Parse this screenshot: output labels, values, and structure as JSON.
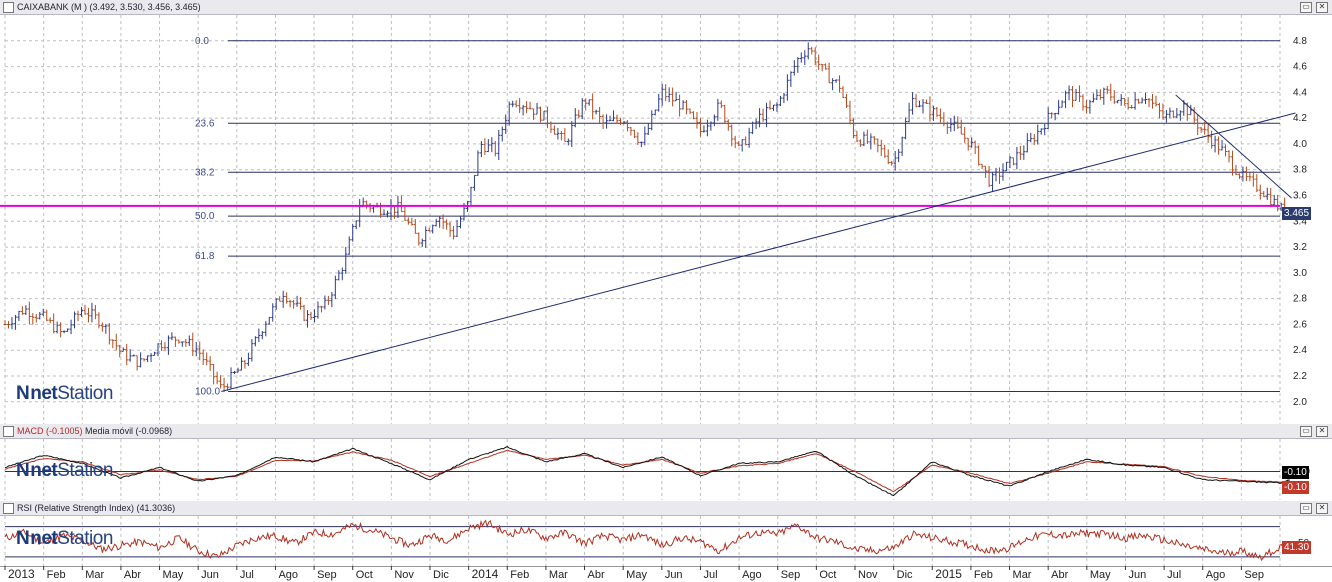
{
  "header": {
    "main_title": "CAIXABANK (M )",
    "main_ohlc": "(3.492, 3.530, 3.456, 3.465)",
    "macd_title": "MACD (-0.1005)",
    "macd_signal": "Media móvil (-0.0968)",
    "rsi_title": "RSI (Relative Strength Index) (41.3036)"
  },
  "window_buttons": [
    "▭",
    "✕"
  ],
  "logo": {
    "mark": "N",
    "net": "net",
    "station": "Station"
  },
  "colors": {
    "price_bars": "#2b3a8a",
    "price_bars_down": "#b34a1e",
    "fib_lines": "#2b3060",
    "support_line": "#e000e0",
    "trend_lines": "#1b2a6e",
    "macd_line": "#111111",
    "macd_signal": "#b03020",
    "rsi_line": "#b03020",
    "last_price_tag": "#2a3c6e",
    "macd_tag_black": "#000000",
    "macd_tag_red": "#c0392b",
    "rsi_tag": "#c0392b"
  },
  "chart_data": [
    {
      "type": "ohlc",
      "y_axis": [
        "4.8",
        "4.6",
        "4.4",
        "4.2",
        "4.0",
        "3.8",
        "3.6",
        "3.4",
        "3.2",
        "3.0",
        "2.8",
        "2.6",
        "2.4",
        "2.2",
        "2.0"
      ],
      "ylim": [
        1.82,
        5.0
      ],
      "grid": true,
      "last_price_label": "3.465",
      "last_price": 3.465,
      "fib_levels": [
        {
          "label": "0.0",
          "price": 4.8
        },
        {
          "label": "23.6",
          "price": 4.16
        },
        {
          "label": "38.2",
          "price": 3.78
        },
        {
          "label": "50.0",
          "price": 3.44
        },
        {
          "label": "61.8",
          "price": 3.13
        },
        {
          "label": "100.0",
          "price": 2.08
        }
      ],
      "support_level": 3.52,
      "trend_lines": [
        {
          "from": {
            "month_index": 5.6,
            "price": 2.08
          },
          "to": {
            "month_index": 33.4,
            "price": 4.24
          }
        },
        {
          "from": {
            "month_index": 30.3,
            "price": 4.38
          },
          "to": {
            "month_index": 33.3,
            "price": 3.58
          }
        }
      ],
      "path_points": [
        [
          0.0,
          2.6
        ],
        [
          0.5,
          2.72
        ],
        [
          1.0,
          2.65
        ],
        [
          1.5,
          2.52
        ],
        [
          2.0,
          2.72
        ],
        [
          2.5,
          2.62
        ],
        [
          3.0,
          2.38
        ],
        [
          3.5,
          2.3
        ],
        [
          4.0,
          2.45
        ],
        [
          4.5,
          2.5
        ],
        [
          5.0,
          2.4
        ],
        [
          5.6,
          2.1
        ],
        [
          6.2,
          2.3
        ],
        [
          6.7,
          2.6
        ],
        [
          7.2,
          2.85
        ],
        [
          7.8,
          2.65
        ],
        [
          8.3,
          2.75
        ],
        [
          8.8,
          3.1
        ],
        [
          9.2,
          3.55
        ],
        [
          9.6,
          3.5
        ],
        [
          10.2,
          3.5
        ],
        [
          10.7,
          3.25
        ],
        [
          11.2,
          3.45
        ],
        [
          11.6,
          3.3
        ],
        [
          12.0,
          3.55
        ],
        [
          12.3,
          4.0
        ],
        [
          12.7,
          3.95
        ],
        [
          13.1,
          4.35
        ],
        [
          13.5,
          4.3
        ],
        [
          14.0,
          4.2
        ],
        [
          14.5,
          4.0
        ],
        [
          15.0,
          4.35
        ],
        [
          15.5,
          4.15
        ],
        [
          16.0,
          4.2
        ],
        [
          16.5,
          4.0
        ],
        [
          17.0,
          4.4
        ],
        [
          17.5,
          4.3
        ],
        [
          18.0,
          4.1
        ],
        [
          18.5,
          4.3
        ],
        [
          19.0,
          3.95
        ],
        [
          19.5,
          4.2
        ],
        [
          20.0,
          4.3
        ],
        [
          20.5,
          4.65
        ],
        [
          20.8,
          4.75
        ],
        [
          21.2,
          4.55
        ],
        [
          21.6,
          4.45
        ],
        [
          22.0,
          4.05
        ],
        [
          22.5,
          4.0
        ],
        [
          23.0,
          3.85
        ],
        [
          23.5,
          4.35
        ],
        [
          24.0,
          4.25
        ],
        [
          24.5,
          4.15
        ],
        [
          25.0,
          4.0
        ],
        [
          25.5,
          3.7
        ],
        [
          26.0,
          3.85
        ],
        [
          26.5,
          4.0
        ],
        [
          27.0,
          4.2
        ],
        [
          27.5,
          4.4
        ],
        [
          28.0,
          4.3
        ],
        [
          28.5,
          4.4
        ],
        [
          29.0,
          4.3
        ],
        [
          29.5,
          4.38
        ],
        [
          30.0,
          4.2
        ],
        [
          30.5,
          4.3
        ],
        [
          31.0,
          4.1
        ],
        [
          31.5,
          3.95
        ],
        [
          32.0,
          3.75
        ],
        [
          32.5,
          3.65
        ],
        [
          33.0,
          3.5
        ],
        [
          33.3,
          3.45
        ]
      ]
    },
    {
      "type": "line",
      "name": "MACD",
      "y_axis": [
        "0.0"
      ],
      "ylim": [
        -0.35,
        0.4
      ],
      "last_values": [
        "-0.10",
        "-0.10"
      ],
      "macd_points": [
        [
          0,
          0.05
        ],
        [
          1,
          0.2
        ],
        [
          2,
          0.1
        ],
        [
          3,
          -0.08
        ],
        [
          4,
          0.05
        ],
        [
          5,
          -0.12
        ],
        [
          6,
          -0.05
        ],
        [
          7,
          0.18
        ],
        [
          8,
          0.12
        ],
        [
          9,
          0.28
        ],
        [
          10,
          0.1
        ],
        [
          11,
          -0.1
        ],
        [
          12,
          0.15
        ],
        [
          13,
          0.3
        ],
        [
          14,
          0.12
        ],
        [
          15,
          0.22
        ],
        [
          16,
          0.05
        ],
        [
          17,
          0.18
        ],
        [
          18,
          -0.05
        ],
        [
          19,
          0.1
        ],
        [
          20,
          0.12
        ],
        [
          21,
          0.25
        ],
        [
          22,
          -0.05
        ],
        [
          23,
          -0.3
        ],
        [
          24,
          0.12
        ],
        [
          25,
          -0.05
        ],
        [
          26,
          -0.18
        ],
        [
          27,
          0.0
        ],
        [
          28,
          0.15
        ],
        [
          29,
          0.08
        ],
        [
          30,
          0.05
        ],
        [
          31,
          -0.1
        ],
        [
          32,
          -0.12
        ],
        [
          33,
          -0.14
        ],
        [
          33.3,
          -0.1
        ]
      ],
      "signal_points": [
        [
          0,
          0.03
        ],
        [
          1,
          0.16
        ],
        [
          2,
          0.12
        ],
        [
          3,
          -0.04
        ],
        [
          4,
          0.02
        ],
        [
          5,
          -0.1
        ],
        [
          6,
          -0.06
        ],
        [
          7,
          0.14
        ],
        [
          8,
          0.13
        ],
        [
          9,
          0.24
        ],
        [
          10,
          0.14
        ],
        [
          11,
          -0.06
        ],
        [
          12,
          0.1
        ],
        [
          13,
          0.26
        ],
        [
          14,
          0.15
        ],
        [
          15,
          0.2
        ],
        [
          16,
          0.08
        ],
        [
          17,
          0.15
        ],
        [
          18,
          -0.02
        ],
        [
          19,
          0.07
        ],
        [
          20,
          0.1
        ],
        [
          21,
          0.22
        ],
        [
          22,
          0.0
        ],
        [
          23,
          -0.25
        ],
        [
          24,
          0.08
        ],
        [
          25,
          -0.02
        ],
        [
          26,
          -0.15
        ],
        [
          27,
          -0.02
        ],
        [
          28,
          0.12
        ],
        [
          29,
          0.09
        ],
        [
          30,
          0.06
        ],
        [
          31,
          -0.06
        ],
        [
          32,
          -0.11
        ],
        [
          33,
          -0.13
        ],
        [
          33.3,
          -0.1
        ]
      ]
    },
    {
      "type": "line",
      "name": "RSI",
      "y_axis": [
        "50"
      ],
      "ylim": [
        18,
        84
      ],
      "reference_levels": [
        30,
        70
      ],
      "last_value_label": "41.30",
      "rsi_points": [
        [
          0,
          55
        ],
        [
          0.5,
          62
        ],
        [
          1,
          48
        ],
        [
          1.5,
          58
        ],
        [
          2,
          52
        ],
        [
          2.5,
          40
        ],
        [
          3,
          45
        ],
        [
          3.5,
          50
        ],
        [
          4,
          42
        ],
        [
          4.5,
          55
        ],
        [
          5,
          38
        ],
        [
          5.5,
          30
        ],
        [
          6,
          45
        ],
        [
          6.5,
          55
        ],
        [
          7,
          58
        ],
        [
          7.5,
          48
        ],
        [
          8,
          62
        ],
        [
          8.5,
          60
        ],
        [
          9,
          72
        ],
        [
          9.5,
          65
        ],
        [
          10,
          55
        ],
        [
          10.5,
          45
        ],
        [
          11,
          58
        ],
        [
          11.5,
          52
        ],
        [
          12,
          68
        ],
        [
          12.5,
          75
        ],
        [
          13,
          60
        ],
        [
          13.5,
          66
        ],
        [
          14,
          55
        ],
        [
          14.5,
          62
        ],
        [
          15,
          48
        ],
        [
          15.5,
          58
        ],
        [
          16,
          52
        ],
        [
          16.5,
          60
        ],
        [
          17,
          45
        ],
        [
          17.5,
          55
        ],
        [
          18,
          50
        ],
        [
          18.5,
          38
        ],
        [
          19,
          55
        ],
        [
          19.5,
          62
        ],
        [
          20,
          60
        ],
        [
          20.5,
          72
        ],
        [
          21,
          55
        ],
        [
          21.5,
          50
        ],
        [
          22,
          40
        ],
        [
          22.5,
          38
        ],
        [
          23,
          42
        ],
        [
          23.5,
          60
        ],
        [
          24,
          55
        ],
        [
          24.5,
          50
        ],
        [
          25,
          45
        ],
        [
          25.5,
          38
        ],
        [
          26,
          42
        ],
        [
          26.5,
          55
        ],
        [
          27,
          60
        ],
        [
          27.5,
          58
        ],
        [
          28,
          62
        ],
        [
          28.5,
          60
        ],
        [
          29,
          55
        ],
        [
          29.5,
          58
        ],
        [
          30,
          52
        ],
        [
          30.5,
          45
        ],
        [
          31,
          40
        ],
        [
          31.5,
          35
        ],
        [
          32,
          38
        ],
        [
          32.5,
          30
        ],
        [
          33,
          42
        ],
        [
          33.3,
          41
        ]
      ]
    }
  ],
  "x_axis": {
    "months": [
      "2013",
      "Feb",
      "Mar",
      "Abr",
      "May",
      "Jun",
      "Jul",
      "Ago",
      "Sep",
      "Oct",
      "Nov",
      "Dic",
      "2014",
      "Feb",
      "Mar",
      "Abr",
      "May",
      "Jun",
      "Jul",
      "Ago",
      "Sep",
      "Oct",
      "Nov",
      "Dic",
      "2015",
      "Feb",
      "Mar",
      "Abr",
      "May",
      "Jun",
      "Jul",
      "Ago",
      "Sep"
    ],
    "bold_indices": [
      0,
      12,
      24
    ]
  }
}
